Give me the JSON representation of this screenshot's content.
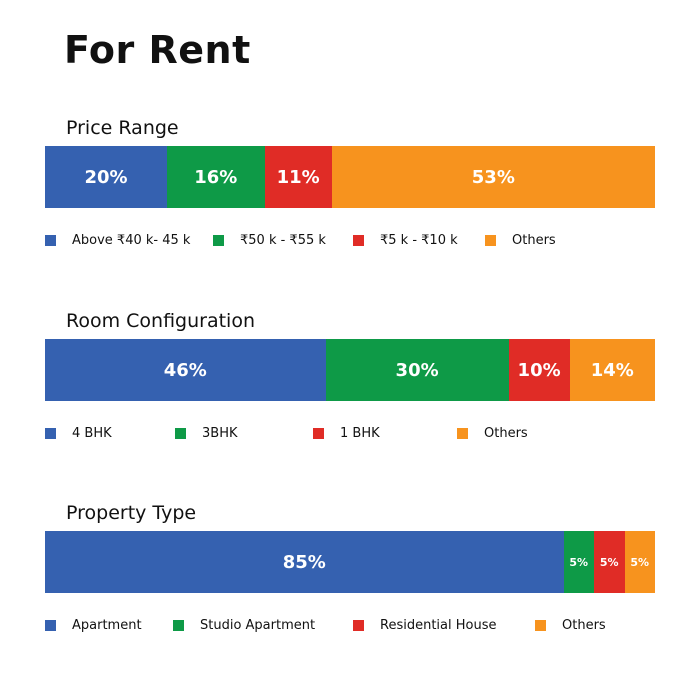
{
  "title": "For Rent",
  "colors": {
    "blue": "#3561B0",
    "green": "#0E9A47",
    "red": "#E02C26",
    "orange": "#F7931E"
  },
  "chart_data": [
    {
      "type": "bar",
      "title": "Price Range",
      "categories": [
        "Above ₹40 k- 45 k",
        "₹50 k - ₹55 k",
        "₹5 k - ₹10 k",
        "Others"
      ],
      "values": [
        20,
        16,
        11,
        53
      ],
      "labels": [
        "20%",
        "16%",
        "11%",
        "53%"
      ],
      "colors": [
        "#3561B0",
        "#0E9A47",
        "#E02C26",
        "#F7931E"
      ]
    },
    {
      "type": "bar",
      "title": "Room Configuration",
      "categories": [
        "4 BHK",
        "3BHK",
        "1 BHK",
        "Others"
      ],
      "values": [
        46,
        30,
        10,
        14
      ],
      "labels": [
        "46%",
        "30%",
        "10%",
        "14%"
      ],
      "colors": [
        "#3561B0",
        "#0E9A47",
        "#E02C26",
        "#F7931E"
      ]
    },
    {
      "type": "bar",
      "title": "Property Type",
      "categories": [
        "Apartment",
        "Studio Apartment",
        "Residential House",
        "Others"
      ],
      "values": [
        85,
        5,
        5,
        5
      ],
      "labels": [
        "85%",
        "5%",
        "5%",
        "5%"
      ],
      "colors": [
        "#3561B0",
        "#0E9A47",
        "#E02C26",
        "#F7931E"
      ]
    }
  ]
}
